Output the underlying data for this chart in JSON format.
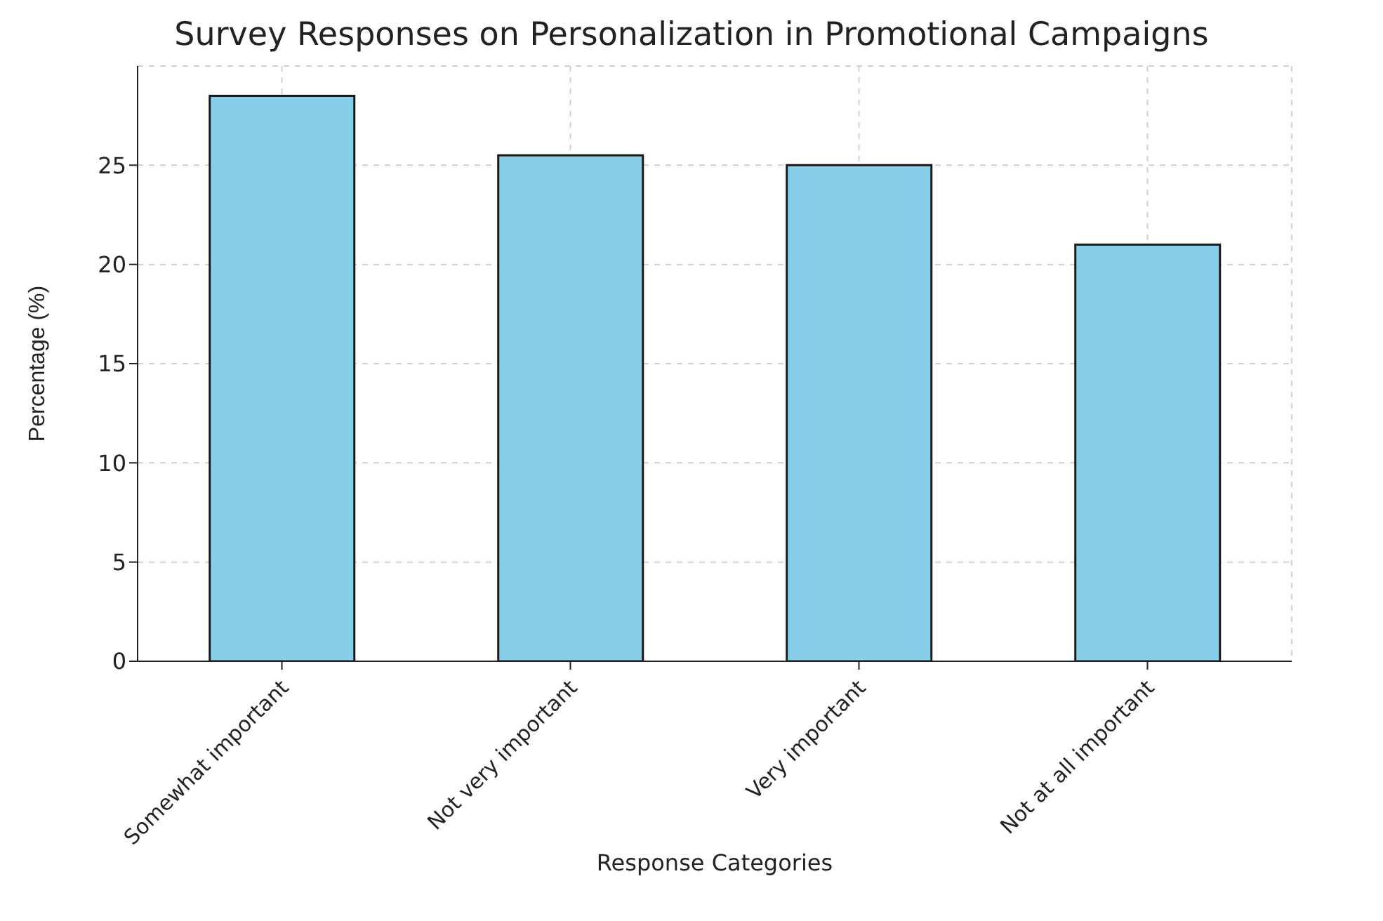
{
  "chart_data": {
    "type": "bar",
    "title": "Survey Responses on Personalization in Promotional Campaigns",
    "xlabel": "Response Categories",
    "ylabel": "Percentage (%)",
    "categories": [
      "Somewhat important",
      "Not very important",
      "Very important",
      "Not at all important"
    ],
    "values": [
      28.5,
      25.5,
      25,
      21
    ],
    "color": "#87ceeb",
    "ylim": [
      0,
      30
    ],
    "yticks": [
      0,
      5,
      10,
      15,
      20,
      25
    ],
    "grid": true
  }
}
